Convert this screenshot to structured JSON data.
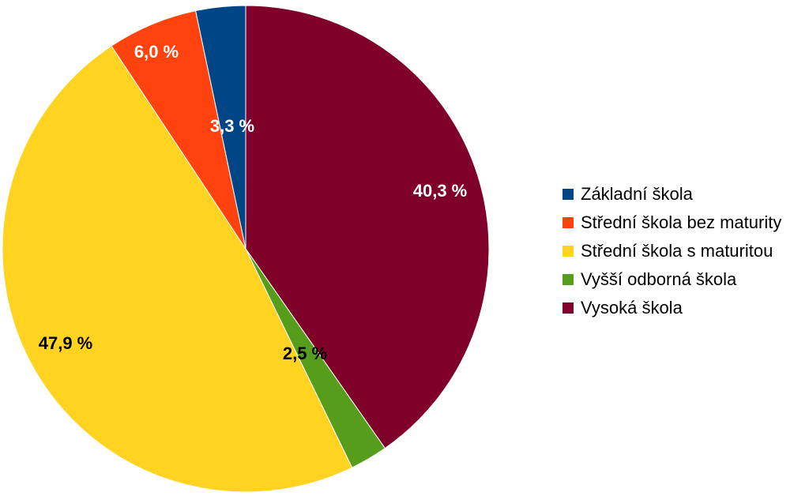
{
  "chart_data": {
    "type": "pie",
    "title": "",
    "start_angle_deg": 0,
    "direction": "clockwise",
    "legend_position": "right",
    "slices": [
      {
        "name": "Vysoká škola",
        "value": 40.3,
        "label": "40,3 %",
        "color": "#7f0028",
        "label_color": "#ffffff"
      },
      {
        "name": "Vyšší odborná škola",
        "value": 2.5,
        "label": "2,5 %",
        "color": "#579d1c",
        "label_color": "#000000"
      },
      {
        "name": "Střední škola s maturitou",
        "value": 47.9,
        "label": "47,9 %",
        "color": "#ffd320",
        "label_color": "#000000"
      },
      {
        "name": "Střední škola bez maturity",
        "value": 6.0,
        "label": "6,0 %",
        "color": "#ff420e",
        "label_color": "#ffffff"
      },
      {
        "name": "Základní škola",
        "value": 3.3,
        "label": "3,3 %",
        "color": "#004586",
        "label_color": "#ffffff"
      }
    ]
  },
  "legend": {
    "items": [
      {
        "label": "Základní škola",
        "color": "#004586"
      },
      {
        "label": "Střední škola bez maturity",
        "color": "#ff420e"
      },
      {
        "label": "Střední škola s maturitou",
        "color": "#ffd320"
      },
      {
        "label": "Vyšší odborná škola",
        "color": "#579d1c"
      },
      {
        "label": "Vysoká škola",
        "color": "#7f0028"
      }
    ]
  }
}
